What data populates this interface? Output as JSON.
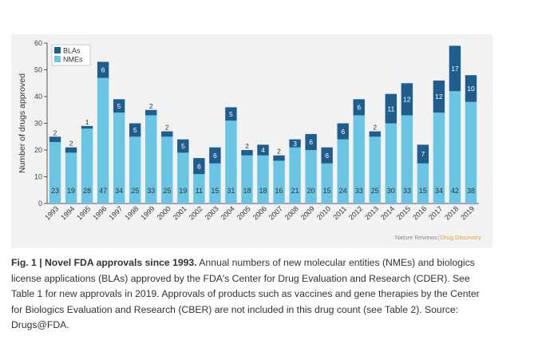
{
  "chart_data": {
    "type": "bar",
    "stacked": true,
    "categories": [
      "1993",
      "1994",
      "1995",
      "1996",
      "1997",
      "1998",
      "1999",
      "2000",
      "2001",
      "2002",
      "2003",
      "2004",
      "2005",
      "2006",
      "2007",
      "2008",
      "2009",
      "2010",
      "2011",
      "2012",
      "2013",
      "2014",
      "2015",
      "2016",
      "2017",
      "2018",
      "2019"
    ],
    "series": [
      {
        "name": "NMEs",
        "color": "#6ac5e4",
        "values": [
          23,
          19,
          28,
          47,
          34,
          25,
          33,
          25,
          19,
          11,
          15,
          31,
          18,
          18,
          16,
          21,
          20,
          15,
          24,
          33,
          25,
          30,
          33,
          15,
          34,
          42,
          38
        ]
      },
      {
        "name": "BLAs",
        "color": "#1f5d8f",
        "values": [
          2,
          2,
          1,
          6,
          5,
          5,
          2,
          2,
          5,
          6,
          6,
          5,
          2,
          4,
          2,
          3,
          6,
          6,
          6,
          6,
          2,
          11,
          12,
          7,
          12,
          17,
          10
        ]
      }
    ],
    "ylabel": "Number of drugs approved",
    "xlabel": "",
    "ylim": [
      0,
      60
    ],
    "yticks": [
      0,
      10,
      20,
      30,
      40,
      50,
      60
    ],
    "legend_position": "top-left",
    "grid": false
  },
  "credit": {
    "source": "Nature Reviews",
    "separator": "|",
    "subtitle": "Drug Discovery"
  },
  "caption": {
    "lead": "Fig. 1 | Novel FDA approvals since 1993.",
    "body": " Annual numbers of new molecular entities (NMEs) and biologics license applications (BLAs) approved by the FDA's Center for Drug Evaluation and Research (CDER). See Table 1 for new approvals in 2019. Approvals of products such as vaccines and gene therapies by the Center for Biologics Evaluation and Research (CBER) are not included in this drug count (see Table 2). Source: Drugs@FDA."
  }
}
